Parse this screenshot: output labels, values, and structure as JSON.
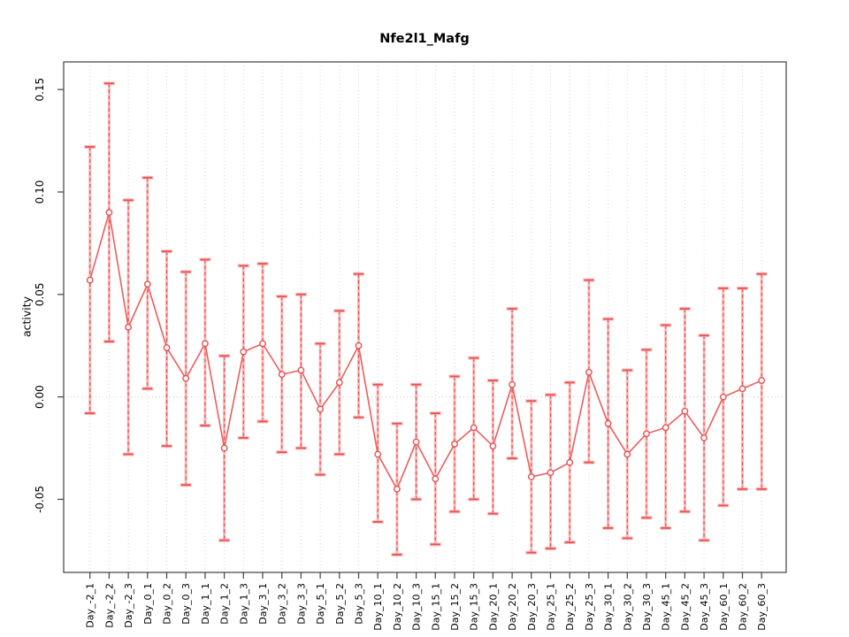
{
  "window": {
    "background": "#ffffff"
  },
  "chart_data": {
    "type": "line",
    "title": "Nfe2l1_Mafg",
    "xlabel": "",
    "ylabel": "activity",
    "categories": [
      "Day_-2_1",
      "Day_-2_2",
      "Day_-2_3",
      "Day_0_1",
      "Day_0_2",
      "Day_0_3",
      "Day_1_1",
      "Day_1_2",
      "Day_1_3",
      "Day_3_1",
      "Day_3_2",
      "Day_3_3",
      "Day_5_1",
      "Day_5_2",
      "Day_5_3",
      "Day_10_1",
      "Day_10_2",
      "Day_10_3",
      "Day_15_1",
      "Day_15_2",
      "Day_15_3",
      "Day_20_1",
      "Day_20_2",
      "Day_20_3",
      "Day_25_1",
      "Day_25_2",
      "Day_25_3",
      "Day_30_1",
      "Day_30_2",
      "Day_30_3",
      "Day_45_1",
      "Day_45_2",
      "Day_45_3",
      "Day_60_1",
      "Day_60_2",
      "Day_60_3"
    ],
    "series": [
      {
        "name": "Nfe2l1_Mafg activity",
        "values": [
          0.057,
          0.09,
          0.034,
          0.055,
          0.024,
          0.009,
          0.026,
          -0.025,
          0.022,
          0.026,
          0.011,
          0.013,
          -0.006,
          0.007,
          0.025,
          -0.028,
          -0.045,
          -0.022,
          -0.04,
          -0.023,
          -0.015,
          -0.024,
          0.006,
          -0.039,
          -0.037,
          -0.032,
          0.012,
          -0.013,
          -0.028,
          -0.018,
          -0.015,
          -0.007,
          -0.02,
          0.0,
          0.004,
          0.008
        ],
        "error_low": [
          -0.008,
          0.027,
          -0.028,
          0.004,
          -0.024,
          -0.043,
          -0.014,
          -0.07,
          -0.02,
          -0.012,
          -0.027,
          -0.025,
          -0.038,
          -0.028,
          -0.01,
          -0.061,
          -0.077,
          -0.05,
          -0.072,
          -0.056,
          -0.05,
          -0.057,
          -0.03,
          -0.076,
          -0.074,
          -0.071,
          -0.032,
          -0.064,
          -0.069,
          -0.059,
          -0.064,
          -0.056,
          -0.07,
          -0.053,
          -0.045,
          -0.045
        ],
        "error_high": [
          0.122,
          0.153,
          0.096,
          0.107,
          0.071,
          0.061,
          0.067,
          0.02,
          0.064,
          0.065,
          0.049,
          0.05,
          0.026,
          0.042,
          0.06,
          0.006,
          -0.013,
          0.006,
          -0.008,
          0.01,
          0.019,
          0.008,
          0.043,
          -0.002,
          0.001,
          0.007,
          0.057,
          0.038,
          0.013,
          0.023,
          0.035,
          0.043,
          0.03,
          0.053,
          0.053,
          0.06
        ]
      }
    ],
    "yticks": [
      -0.05,
      0.0,
      0.05,
      0.1,
      0.15
    ],
    "ylim": [
      -0.085,
      0.164
    ],
    "grid": {
      "vertical_dotted_per_category": true,
      "horizontal_dotted_zero_line": true
    },
    "legend": "none",
    "marker": "open-circle",
    "colors": {
      "point_line": "#ee5c5c",
      "error_band": "#f9a5a5",
      "error_dash": "#e85050",
      "grid": "#d6d6d6",
      "zero_line": "#c9c9c9",
      "axis": "#4d4d4d",
      "text": "#000000",
      "background": "#ffffff"
    }
  }
}
